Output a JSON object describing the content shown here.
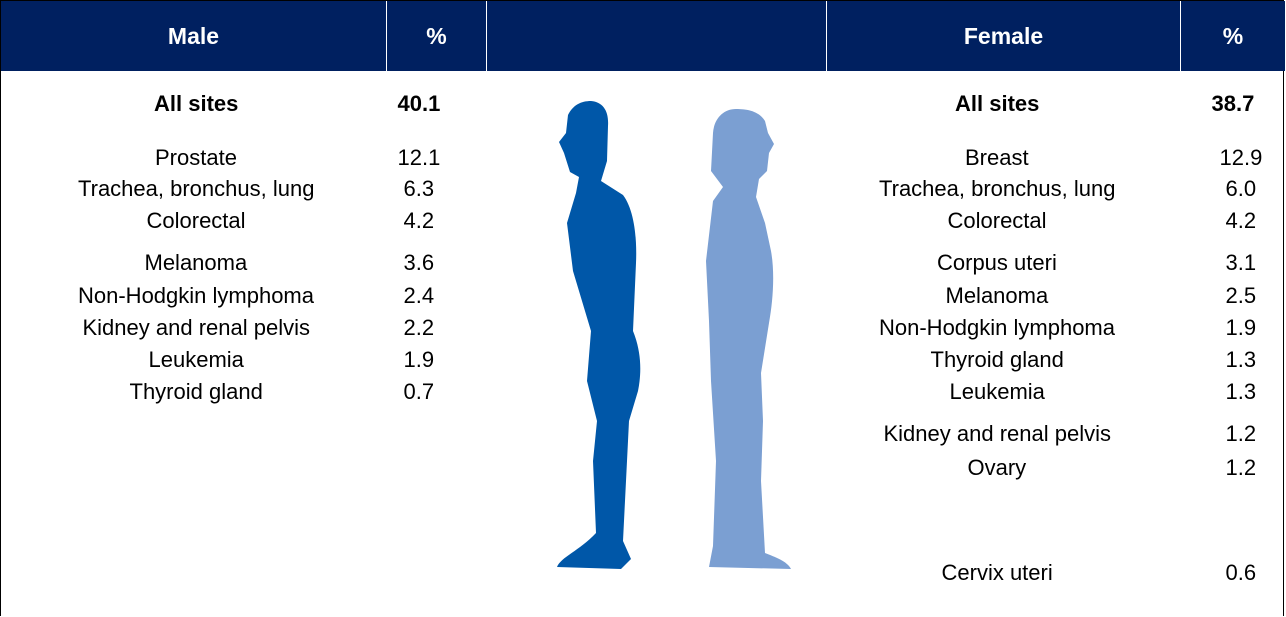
{
  "header": {
    "male": "Male",
    "male_pct": "%",
    "female": "Female",
    "female_pct": "%"
  },
  "male": {
    "all_sites": {
      "label": "All sites",
      "value": "40.1"
    },
    "rows": [
      [
        "Prostate",
        "12.1"
      ],
      [
        "Trachea, bronchus, lung",
        "6.3"
      ],
      [
        "Colorectal",
        "4.2"
      ],
      [
        "Melanoma",
        "3.6"
      ],
      [
        "Non-Hodgkin lymphoma",
        "2.4"
      ],
      [
        "Kidney and renal pelvis",
        "2.2"
      ],
      [
        "Leukemia",
        "1.9"
      ],
      [
        "Thyroid gland",
        "0.7"
      ]
    ]
  },
  "female": {
    "all_sites": {
      "label": "All sites",
      "value": "38.7"
    },
    "rows": [
      [
        "Breast",
        "12.9"
      ],
      [
        "Trachea, bronchus, lung",
        "6.0"
      ],
      [
        "Colorectal",
        "4.2"
      ],
      [
        "Corpus uteri",
        "3.1"
      ],
      [
        "Melanoma",
        "2.5"
      ],
      [
        "Non-Hodgkin lymphoma",
        "1.9"
      ],
      [
        "Thyroid gland",
        "1.3"
      ],
      [
        "Leukemia",
        "1.3"
      ],
      [
        "Kidney and renal pelvis",
        "1.2"
      ],
      [
        "Ovary",
        "1.2"
      ],
      [
        "Cervix uteri",
        "0.6"
      ]
    ]
  }
}
